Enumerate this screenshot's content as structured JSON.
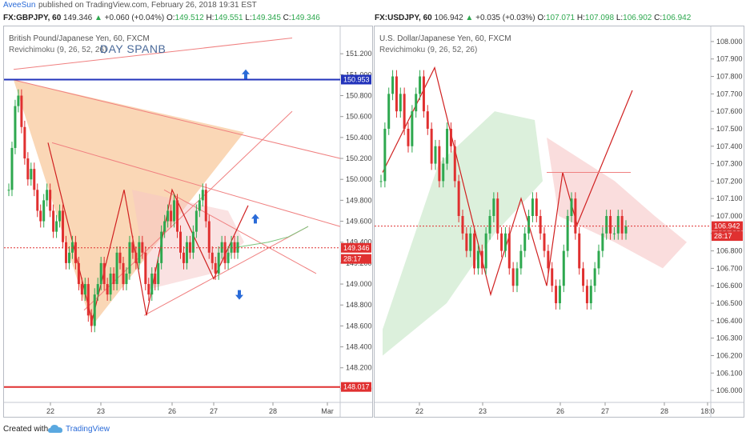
{
  "header": {
    "author": "AveeSun",
    "meta": "published on TradingView.com, February 26, 2018 19:31 EST"
  },
  "left_quote": {
    "symbol": "FX:GBPJPY, 60",
    "last": "149.346",
    "change": "+0.060 (+0.04%)",
    "o_label": "O:",
    "o": "149.512",
    "h_label": "H:",
    "h": "149.551",
    "l_label": "L:",
    "l": "149.345",
    "c_label": "C:",
    "c": "149.346"
  },
  "right_quote": {
    "symbol": "FX:USDJPY, 60",
    "last": "106.942",
    "change": "+0.035 (+0.03%)",
    "o_label": "O:",
    "o": "107.071",
    "h_label": "H:",
    "h": "107.098",
    "l_label": "L:",
    "l": "106.902",
    "c_label": "C:",
    "c": "106.942"
  },
  "footer": {
    "created_with": "Created with",
    "brand": "TradingView"
  },
  "colors": {
    "up": "#2ea84f",
    "down": "#e03030",
    "accent": "#2a6bd8"
  },
  "chart_data": [
    {
      "type": "line",
      "title": "British Pound/Japanese Yen, 60, FXCM",
      "indicator": "Revichimoku (9, 26, 52, 26)",
      "annotation": "DAY SPANB",
      "x_ticks": [
        "22",
        "23",
        "26",
        "27",
        "28",
        "Mar"
      ],
      "ylim": [
        147.9,
        151.4
      ],
      "y_ticks": [
        "151.200",
        "151.000",
        "150.800",
        "150.600",
        "150.400",
        "150.200",
        "150.000",
        "149.800",
        "149.600",
        "149.400",
        "149.200",
        "149.000",
        "148.800",
        "148.600",
        "148.400",
        "148.200",
        "148.000"
      ],
      "price_tags": [
        {
          "label": "150.953",
          "value": 150.953,
          "color": "#2233bb"
        },
        {
          "label": "149.346",
          "value": 149.346,
          "color": "#e03030"
        },
        {
          "label": "28:17",
          "value": 149.24,
          "color": "#e03030"
        },
        {
          "label": "148.017",
          "value": 148.017,
          "color": "#e03030"
        }
      ],
      "horizontal_lines": [
        {
          "value": 150.953,
          "color": "#2233bb"
        },
        {
          "value": 148.017,
          "color": "#e03030"
        }
      ],
      "close": [
        149.9,
        150.3,
        150.7,
        150.8,
        150.5,
        150.2,
        150.0,
        150.1,
        149.9,
        149.7,
        149.6,
        149.8,
        149.9,
        149.7,
        149.5,
        149.6,
        149.7,
        149.4,
        149.2,
        149.3,
        149.4,
        149.2,
        149.0,
        148.9,
        149.0,
        148.7,
        148.6,
        148.9,
        149.0,
        149.2,
        149.0,
        148.9,
        149.1,
        149.0,
        149.3,
        149.2,
        149.0,
        149.1,
        149.4,
        149.3,
        149.2,
        149.4,
        149.3,
        149.0,
        148.9,
        149.1,
        149.0,
        149.2,
        149.5,
        149.6,
        149.7,
        149.6,
        149.8,
        149.5,
        149.3,
        149.2,
        149.4,
        149.3,
        149.5,
        149.7,
        149.8,
        149.9,
        149.6,
        149.3,
        149.2,
        149.1,
        149.3,
        149.4,
        149.2,
        149.3,
        149.4,
        149.3,
        149.4
      ]
    },
    {
      "type": "line",
      "title": "U.S. Dollar/Japanese Yen, 60, FXCM",
      "indicator": "Revichimoku (9, 26, 52, 26)",
      "x_ticks": [
        "22",
        "23",
        "26",
        "27",
        "28",
        "18:0"
      ],
      "ylim": [
        105.95,
        108.05
      ],
      "y_ticks": [
        "108.000",
        "107.900",
        "107.800",
        "107.700",
        "107.600",
        "107.500",
        "107.400",
        "107.300",
        "107.200",
        "107.100",
        "107.000",
        "106.900",
        "106.800",
        "106.700",
        "106.600",
        "106.500",
        "106.400",
        "106.300",
        "106.200",
        "106.100",
        "106.000"
      ],
      "price_tags": [
        {
          "label": "106.942",
          "value": 106.942,
          "color": "#e03030"
        },
        {
          "label": "28:17",
          "value": 106.885,
          "color": "#e03030"
        }
      ],
      "close": [
        107.2,
        107.5,
        107.7,
        107.8,
        107.6,
        107.7,
        107.5,
        107.4,
        107.6,
        107.7,
        107.8,
        107.6,
        107.5,
        107.3,
        107.4,
        107.2,
        107.3,
        107.5,
        107.4,
        107.2,
        107.0,
        106.9,
        106.8,
        106.9,
        106.7,
        106.8,
        106.7,
        106.9,
        107.0,
        107.1,
        106.9,
        106.8,
        106.9,
        106.7,
        106.6,
        106.7,
        106.8,
        106.9,
        107.0,
        107.1,
        107.0,
        106.9,
        106.8,
        106.7,
        106.6,
        106.5,
        106.6,
        106.8,
        107.0,
        107.1,
        106.9,
        106.7,
        106.6,
        106.5,
        106.6,
        106.7,
        106.8,
        106.9,
        107.0,
        106.9,
        106.9,
        107.0,
        106.9,
        106.94
      ]
    }
  ]
}
